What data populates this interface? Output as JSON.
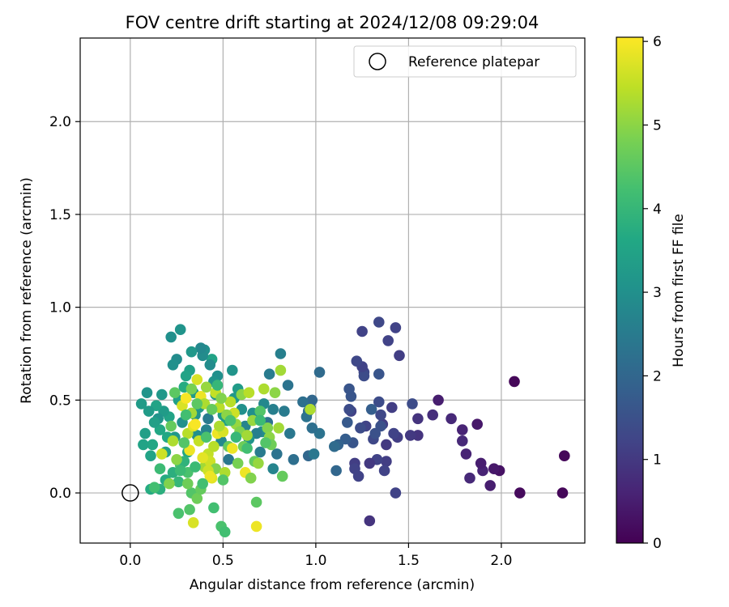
{
  "chart_data": {
    "type": "scatter",
    "title": "FOV centre drift starting at 2024/12/08 09:29:04",
    "xlabel": "Angular distance from reference (arcmin)",
    "ylabel": "Rotation from reference (arcmin)",
    "xlim": [
      -0.27,
      2.45
    ],
    "ylim": [
      -0.27,
      2.45
    ],
    "xticks": [
      0.0,
      0.5,
      1.0,
      1.5,
      2.0
    ],
    "xtick_labels": [
      "0.0",
      "0.5",
      "1.0",
      "1.5",
      "2.0"
    ],
    "yticks": [
      0.0,
      0.5,
      1.0,
      1.5,
      2.0
    ],
    "ytick_labels": [
      "0.0",
      "0.5",
      "1.0",
      "1.5",
      "2.0"
    ],
    "grid": true,
    "colormap": "viridis",
    "colorbar": {
      "label": "Hours from first FF file",
      "min": 0,
      "max": 6.05,
      "ticks": [
        0,
        1,
        2,
        3,
        4,
        5,
        6
      ],
      "tick_labels": [
        "0",
        "1",
        "2",
        "3",
        "4",
        "5",
        "6"
      ]
    },
    "legend": {
      "position": "top-right",
      "entries": [
        {
          "label": "Reference platepar",
          "marker": "open-circle"
        }
      ]
    },
    "reference_point": {
      "x": 0.0,
      "y": 0.0
    },
    "points": [
      [
        2.34,
        0.2,
        0.1
      ],
      [
        2.33,
        0.0,
        0.1
      ],
      [
        2.1,
        0.0,
        0.15
      ],
      [
        2.07,
        0.6,
        0.1
      ],
      [
        1.99,
        0.12,
        0.3
      ],
      [
        1.96,
        0.13,
        0.4
      ],
      [
        1.94,
        0.04,
        0.5
      ],
      [
        1.9,
        0.12,
        0.6
      ],
      [
        1.89,
        0.16,
        0.5
      ],
      [
        1.87,
        0.37,
        0.4
      ],
      [
        1.83,
        0.08,
        0.7
      ],
      [
        1.81,
        0.21,
        0.6
      ],
      [
        1.79,
        0.28,
        0.7
      ],
      [
        1.79,
        0.34,
        0.6
      ],
      [
        1.73,
        0.4,
        0.7
      ],
      [
        1.66,
        0.5,
        0.5
      ],
      [
        1.63,
        0.42,
        0.8
      ],
      [
        1.55,
        0.4,
        0.9
      ],
      [
        1.55,
        0.31,
        0.9
      ],
      [
        1.51,
        0.31,
        1.0
      ],
      [
        1.52,
        0.48,
        1.4
      ],
      [
        1.43,
        0.89,
        1.2
      ],
      [
        1.45,
        0.74,
        1.1
      ],
      [
        1.39,
        0.82,
        1.2
      ],
      [
        1.34,
        0.92,
        1.3
      ],
      [
        1.25,
        0.87,
        1.2
      ],
      [
        1.44,
        0.3,
        1.1
      ],
      [
        1.42,
        0.32,
        1.2
      ],
      [
        1.41,
        0.46,
        1.1
      ],
      [
        1.38,
        0.26,
        1.0
      ],
      [
        1.38,
        0.17,
        1.1
      ],
      [
        1.37,
        0.12,
        1.2
      ],
      [
        1.36,
        0.37,
        1.1
      ],
      [
        1.35,
        0.42,
        1.3
      ],
      [
        1.34,
        0.49,
        1.4
      ],
      [
        1.33,
        0.18,
        1.2
      ],
      [
        1.31,
        0.29,
        1.3
      ],
      [
        1.29,
        0.16,
        1.0
      ],
      [
        1.27,
        0.36,
        1.2
      ],
      [
        1.26,
        0.65,
        1.3
      ],
      [
        1.26,
        0.63,
        1.4
      ],
      [
        1.25,
        0.68,
        1.2
      ],
      [
        1.24,
        0.35,
        1.4
      ],
      [
        1.23,
        0.09,
        1.2
      ],
      [
        1.22,
        0.71,
        1.3
      ],
      [
        1.21,
        0.16,
        1.1
      ],
      [
        1.21,
        0.13,
        1.2
      ],
      [
        1.2,
        0.27,
        1.6
      ],
      [
        1.19,
        0.44,
        1.2
      ],
      [
        1.19,
        0.52,
        1.6
      ],
      [
        1.18,
        0.45,
        1.4
      ],
      [
        1.18,
        0.56,
        1.6
      ],
      [
        1.17,
        0.38,
        1.7
      ],
      [
        1.16,
        0.29,
        1.8
      ],
      [
        1.29,
        -0.15,
        0.9
      ],
      [
        1.43,
        0.0,
        1.2
      ],
      [
        1.34,
        0.64,
        1.6
      ],
      [
        1.3,
        0.45,
        1.8
      ],
      [
        1.32,
        0.32,
        1.5
      ],
      [
        1.35,
        0.36,
        1.5
      ],
      [
        1.12,
        0.26,
        1.9
      ],
      [
        1.1,
        0.25,
        2.1
      ],
      [
        1.11,
        0.12,
        2.0
      ],
      [
        1.02,
        0.65,
        2.1
      ],
      [
        1.02,
        0.32,
        2.3
      ],
      [
        0.98,
        0.35,
        2.2
      ],
      [
        0.97,
        0.46,
        2.1
      ],
      [
        0.98,
        0.5,
        2.0
      ],
      [
        0.96,
        0.44,
        2.2
      ],
      [
        0.95,
        0.41,
        2.3
      ],
      [
        0.96,
        0.2,
        2.0
      ],
      [
        0.99,
        0.21,
        2.4
      ],
      [
        0.93,
        0.49,
        2.2
      ],
      [
        0.88,
        0.18,
        2.2
      ],
      [
        0.86,
        0.32,
        2.4
      ],
      [
        0.85,
        0.58,
        2.3
      ],
      [
        0.83,
        0.44,
        2.5
      ],
      [
        0.81,
        0.75,
        2.6
      ],
      [
        0.79,
        0.21,
        2.3
      ],
      [
        0.77,
        0.13,
        2.7
      ],
      [
        0.77,
        0.45,
        2.6
      ],
      [
        0.75,
        0.64,
        2.5
      ],
      [
        0.74,
        0.38,
        2.3
      ],
      [
        0.72,
        0.48,
        2.8
      ],
      [
        0.71,
        0.33,
        2.9
      ],
      [
        0.7,
        0.22,
        2.5
      ],
      [
        0.68,
        0.32,
        2.6
      ],
      [
        0.66,
        0.43,
        3.0
      ],
      [
        0.64,
        0.29,
        3.1
      ],
      [
        0.62,
        0.36,
        2.7
      ],
      [
        0.6,
        0.45,
        3.0
      ],
      [
        0.58,
        0.56,
        3.3
      ],
      [
        0.56,
        0.51,
        3.2
      ],
      [
        0.55,
        0.66,
        3.1
      ],
      [
        0.53,
        0.18,
        2.4
      ],
      [
        0.52,
        0.39,
        3.4
      ],
      [
        0.5,
        0.42,
        3.3
      ],
      [
        0.49,
        0.28,
        2.8
      ],
      [
        0.47,
        0.63,
        3.0
      ],
      [
        0.46,
        0.53,
        3.2
      ],
      [
        0.45,
        0.6,
        3.1
      ],
      [
        0.44,
        0.72,
        3.5
      ],
      [
        0.43,
        0.69,
        2.9
      ],
      [
        0.42,
        0.4,
        2.5
      ],
      [
        0.41,
        0.34,
        2.7
      ],
      [
        0.4,
        0.77,
        3.0
      ],
      [
        0.39,
        0.74,
        2.9
      ],
      [
        0.38,
        0.78,
        2.8
      ],
      [
        0.37,
        0.46,
        3.2
      ],
      [
        0.36,
        0.31,
        3.0
      ],
      [
        0.35,
        0.42,
        3.1
      ],
      [
        0.34,
        0.54,
        3.3
      ],
      [
        0.33,
        0.76,
        3.2
      ],
      [
        0.32,
        0.66,
        3.4
      ],
      [
        0.31,
        0.22,
        3.6
      ],
      [
        0.3,
        0.63,
        3.5
      ],
      [
        0.29,
        0.57,
        3.7
      ],
      [
        0.28,
        0.38,
        3.0
      ],
      [
        0.27,
        0.88,
        3.1
      ],
      [
        0.26,
        0.5,
        3.4
      ],
      [
        0.25,
        0.72,
        2.9
      ],
      [
        0.24,
        0.3,
        3.2
      ],
      [
        0.23,
        0.69,
        3.0
      ],
      [
        0.22,
        0.84,
        3.0
      ],
      [
        0.21,
        0.41,
        3.5
      ],
      [
        0.2,
        0.3,
        3.6
      ],
      [
        0.19,
        0.22,
        3.4
      ],
      [
        0.18,
        0.44,
        3.3
      ],
      [
        0.17,
        0.53,
        3.2
      ],
      [
        0.16,
        0.34,
        3.6
      ],
      [
        0.15,
        0.4,
        3.1
      ],
      [
        0.14,
        0.47,
        3.5
      ],
      [
        0.13,
        0.38,
        3.4
      ],
      [
        0.12,
        0.26,
        3.6
      ],
      [
        0.11,
        0.2,
        3.5
      ],
      [
        0.1,
        0.44,
        3.3
      ],
      [
        0.09,
        0.54,
        3.1
      ],
      [
        0.08,
        0.32,
        3.4
      ],
      [
        0.07,
        0.26,
        3.5
      ],
      [
        0.06,
        0.48,
        3.3
      ],
      [
        0.11,
        0.02,
        3.7
      ],
      [
        0.16,
        0.02,
        3.8
      ],
      [
        0.13,
        0.03,
        4.2
      ],
      [
        0.16,
        0.13,
        4.1
      ],
      [
        0.19,
        0.07,
        3.7
      ],
      [
        0.23,
        0.11,
        3.8
      ],
      [
        0.26,
        0.06,
        4.0
      ],
      [
        0.27,
        0.15,
        4.3
      ],
      [
        0.29,
        0.17,
        3.9
      ],
      [
        0.31,
        0.11,
        4.3
      ],
      [
        0.33,
        0.0,
        4.4
      ],
      [
        0.36,
        -0.03,
        4.7
      ],
      [
        0.34,
        -0.16,
        5.7
      ],
      [
        0.26,
        -0.11,
        4.3
      ],
      [
        0.32,
        -0.09,
        4.4
      ],
      [
        0.45,
        -0.08,
        4.2
      ],
      [
        0.49,
        -0.18,
        4.3
      ],
      [
        0.51,
        -0.21,
        4.2
      ],
      [
        0.38,
        0.02,
        4.6
      ],
      [
        0.4,
        0.14,
        5.2
      ],
      [
        0.42,
        0.21,
        5.5
      ],
      [
        0.43,
        0.17,
        5.6
      ],
      [
        0.44,
        0.08,
        5.8
      ],
      [
        0.46,
        0.13,
        4.9
      ],
      [
        0.47,
        0.32,
        5.9
      ],
      [
        0.48,
        0.46,
        5.4
      ],
      [
        0.5,
        0.33,
        5.7
      ],
      [
        0.51,
        0.11,
        5.3
      ],
      [
        0.53,
        0.25,
        4.6
      ],
      [
        0.54,
        0.49,
        5.4
      ],
      [
        0.55,
        0.24,
        5.9
      ],
      [
        0.56,
        0.43,
        5.6
      ],
      [
        0.57,
        0.37,
        5.1
      ],
      [
        0.58,
        0.16,
        4.8
      ],
      [
        0.59,
        0.33,
        4.9
      ],
      [
        0.6,
        0.53,
        5.0
      ],
      [
        0.61,
        0.25,
        4.7
      ],
      [
        0.62,
        0.11,
        5.9
      ],
      [
        0.63,
        0.31,
        5.2
      ],
      [
        0.64,
        0.54,
        5.4
      ],
      [
        0.65,
        0.08,
        4.9
      ],
      [
        0.66,
        0.39,
        5.1
      ],
      [
        0.67,
        0.17,
        4.6
      ],
      [
        0.68,
        -0.05,
        4.5
      ],
      [
        0.68,
        -0.18,
        5.9
      ],
      [
        0.69,
        0.16,
        5.1
      ],
      [
        0.7,
        0.44,
        4.4
      ],
      [
        0.72,
        0.56,
        5.3
      ],
      [
        0.74,
        0.35,
        4.9
      ],
      [
        0.75,
        0.3,
        5.0
      ],
      [
        0.76,
        0.26,
        4.7
      ],
      [
        0.78,
        0.54,
        5.0
      ],
      [
        0.8,
        0.35,
        5.2
      ],
      [
        0.81,
        0.66,
        5.2
      ],
      [
        0.82,
        0.09,
        4.6
      ],
      [
        0.97,
        0.45,
        5.3
      ],
      [
        0.17,
        0.21,
        5.6
      ],
      [
        0.21,
        0.05,
        4.9
      ],
      [
        0.23,
        0.28,
        5.3
      ],
      [
        0.25,
        0.18,
        5.0
      ],
      [
        0.28,
        0.47,
        5.7
      ],
      [
        0.3,
        0.51,
        6.0
      ],
      [
        0.31,
        0.32,
        5.4
      ],
      [
        0.32,
        0.23,
        5.9
      ],
      [
        0.33,
        0.43,
        5.2
      ],
      [
        0.34,
        0.36,
        5.8
      ],
      [
        0.35,
        0.37,
        6.0
      ],
      [
        0.36,
        0.61,
        5.7
      ],
      [
        0.37,
        0.28,
        5.5
      ],
      [
        0.38,
        0.52,
        5.9
      ],
      [
        0.39,
        0.19,
        5.8
      ],
      [
        0.4,
        0.48,
        5.3
      ],
      [
        0.41,
        0.57,
        5.1
      ],
      [
        0.42,
        0.12,
        5.6
      ],
      [
        0.43,
        0.09,
        5.9
      ],
      [
        0.45,
        0.25,
        5.4
      ],
      [
        0.46,
        0.54,
        5.5
      ],
      [
        0.48,
        0.36,
        5.3
      ],
      [
        0.49,
        0.51,
        4.9
      ],
      [
        0.52,
        0.42,
        5.0
      ],
      [
        0.24,
        0.54,
        4.5
      ],
      [
        0.22,
        0.36,
        4.6
      ],
      [
        0.27,
        0.12,
        4.1
      ],
      [
        0.29,
        0.27,
        4.4
      ],
      [
        0.3,
        0.42,
        4.2
      ],
      [
        0.31,
        0.05,
        4.7
      ],
      [
        0.33,
        0.56,
        4.8
      ],
      [
        0.35,
        0.14,
        4.1
      ],
      [
        0.36,
        0.48,
        4.5
      ],
      [
        0.39,
        0.05,
        4.2
      ],
      [
        0.41,
        0.3,
        4.3
      ],
      [
        0.44,
        0.45,
        4.6
      ],
      [
        0.47,
        0.58,
        4.0
      ],
      [
        0.5,
        0.07,
        4.4
      ],
      [
        0.54,
        0.39,
        4.3
      ],
      [
        0.57,
        0.3,
        4.0
      ],
      [
        0.63,
        0.24,
        4.2
      ],
      [
        0.7,
        0.39,
        4.1
      ],
      [
        0.73,
        0.27,
        4.4
      ]
    ]
  }
}
